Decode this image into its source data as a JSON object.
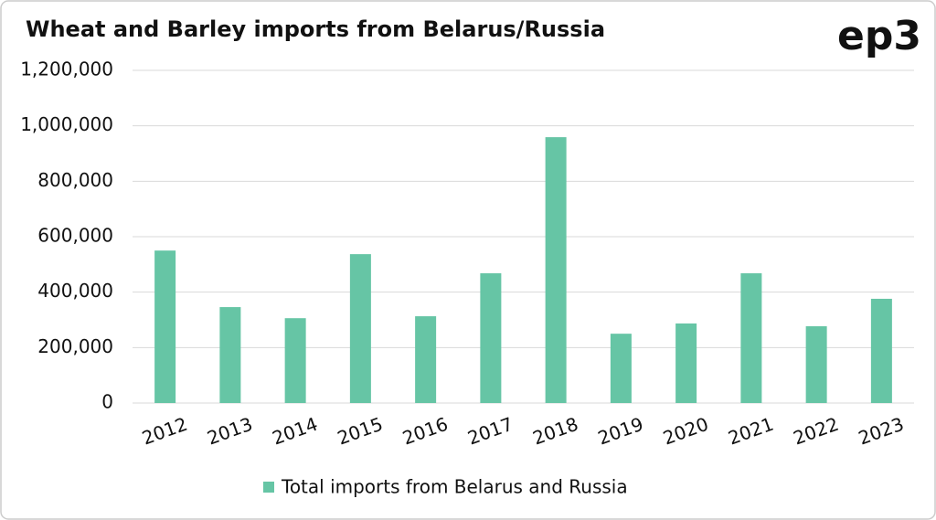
{
  "chart_data": {
    "type": "bar",
    "title": "Wheat and Barley imports from Belarus/Russia",
    "logo": "ep3",
    "categories": [
      "2012",
      "2013",
      "2014",
      "2015",
      "2016",
      "2017",
      "2018",
      "2019",
      "2020",
      "2021",
      "2022",
      "2023"
    ],
    "series": [
      {
        "name": "Total imports from Belarus and Russia",
        "color": "#66c5a5",
        "values": [
          550000,
          346000,
          306000,
          537000,
          313000,
          468000,
          959000,
          250000,
          287000,
          468000,
          277000,
          376000
        ]
      }
    ],
    "ylim": [
      0,
      1200000
    ],
    "yticks": [
      0,
      {
        "value": 200000,
        "label": "200,000"
      },
      {
        "value": 400000,
        "label": "400,000"
      },
      {
        "value": 600000,
        "label": "600,000"
      },
      {
        "value": 800000,
        "label": "800,000"
      },
      {
        "value": 1000000,
        "label": "1,000,000"
      },
      {
        "value": 1200000,
        "label": "1,200,000"
      }
    ],
    "grid": true,
    "legend": "bottom"
  }
}
